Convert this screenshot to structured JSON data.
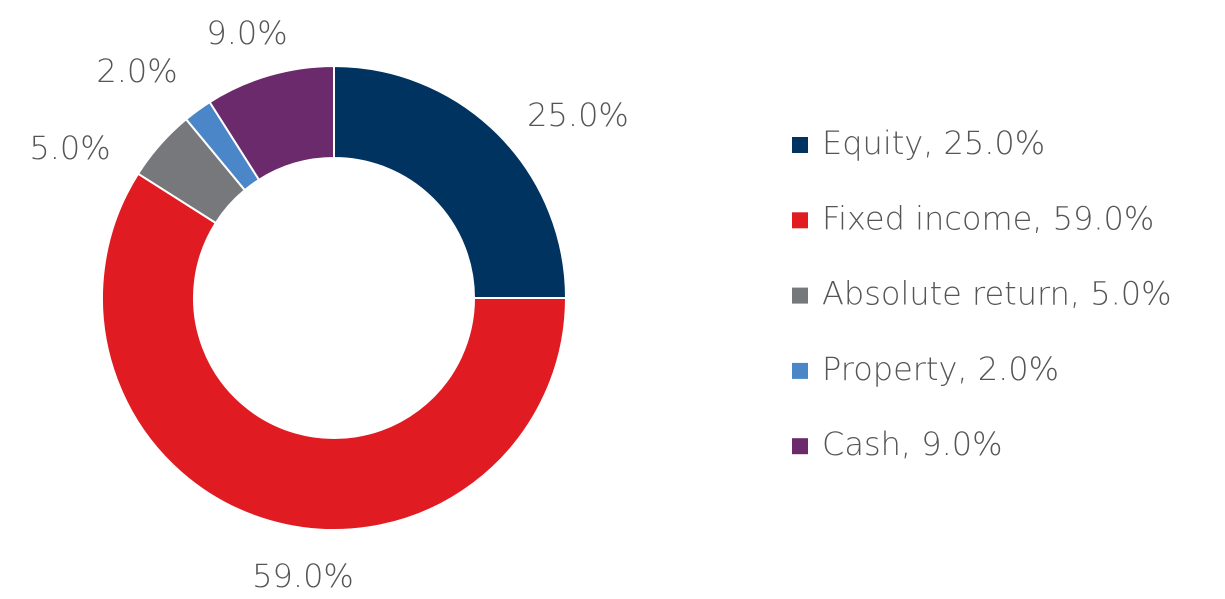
{
  "chart_data": {
    "type": "donut",
    "categories": [
      "Equity, 25.0%",
      "Fixed income, 59.0%",
      "Absolute return, 5.0%",
      "Property, 2.0%",
      "Cash, 9.0%"
    ],
    "values": [
      25,
      59,
      5,
      2,
      9
    ],
    "value_labels": [
      "25.0%",
      "59.0%",
      "5.0%",
      "2.0%",
      "9.0%"
    ],
    "colors": [
      "#00335f",
      "#e01b22",
      "#77787b",
      "#4a86c8",
      "#6b2a6b"
    ],
    "legend": "right"
  }
}
